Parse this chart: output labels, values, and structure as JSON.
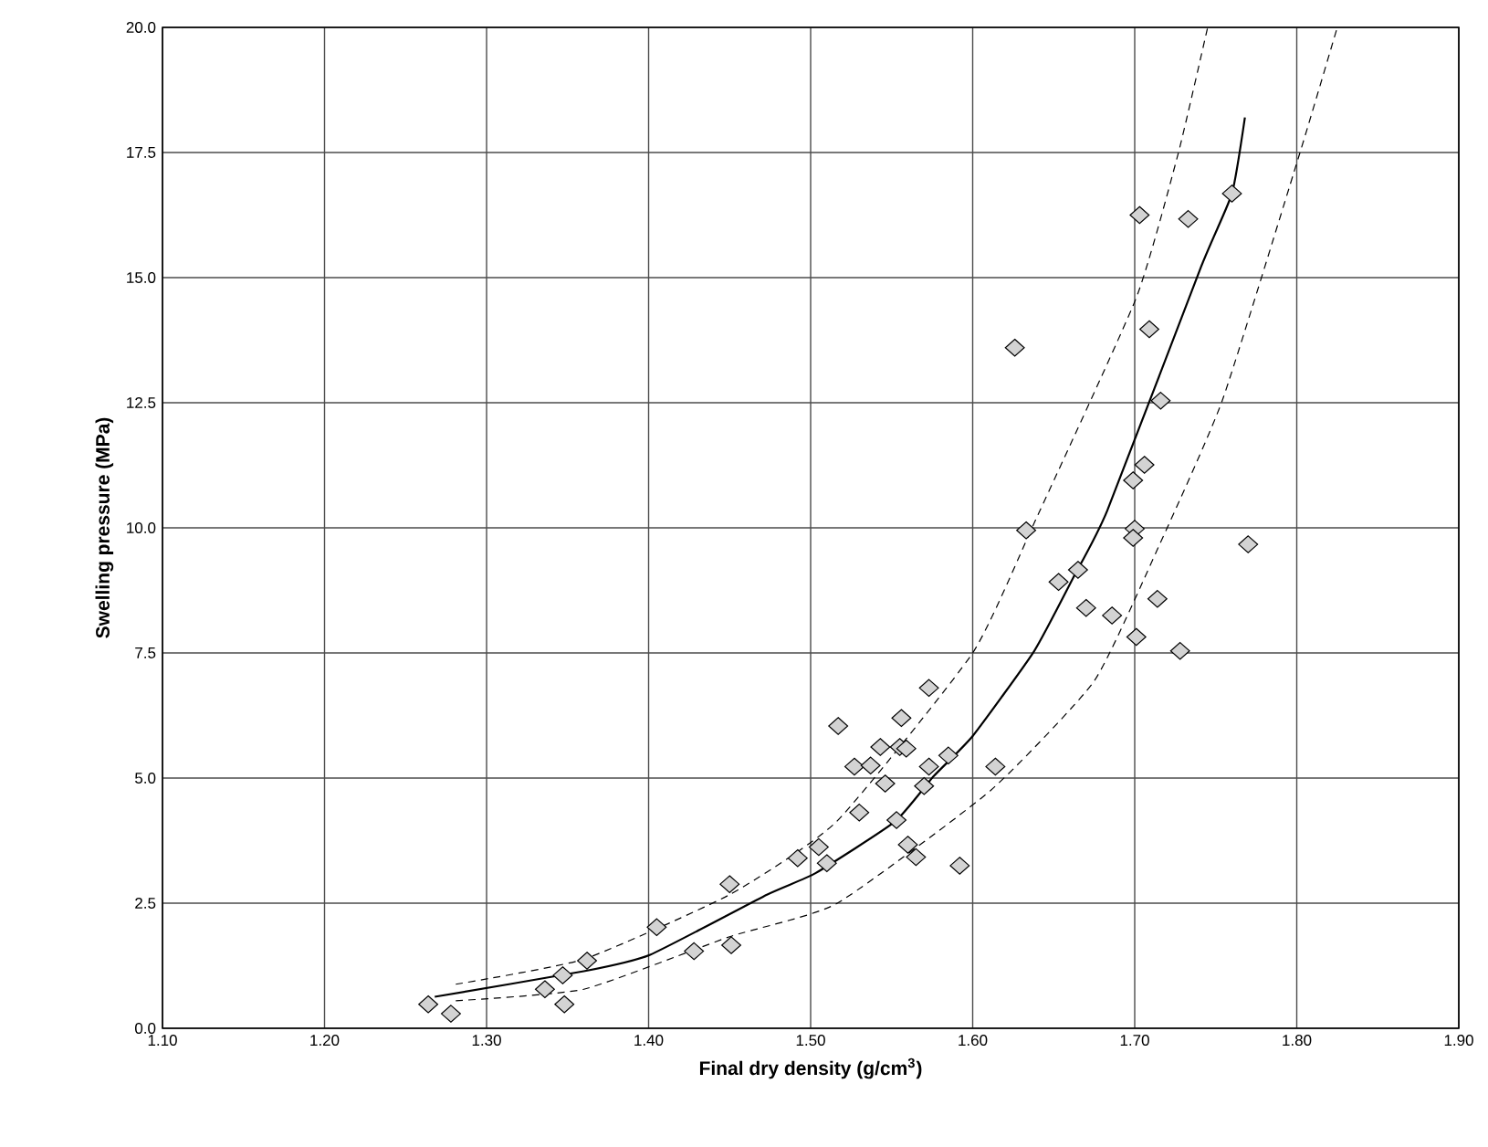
{
  "chart_data": {
    "type": "scatter",
    "xlabel": "Final dry density (g/cm$^{3}$)",
    "ylabel": "Swelling pressure (MPa)",
    "xlim": [
      1.1,
      1.9
    ],
    "ylim": [
      0,
      20
    ],
    "xticks": [
      {
        "value": 1.1,
        "label": "1.10"
      },
      {
        "value": 1.2,
        "label": "1.20"
      },
      {
        "value": 1.3,
        "label": "1.30"
      },
      {
        "value": 1.4,
        "label": "1.40"
      },
      {
        "value": 1.5,
        "label": "1.50"
      },
      {
        "value": 1.6,
        "label": "1.60"
      },
      {
        "value": 1.7,
        "label": "1.70"
      },
      {
        "value": 1.8,
        "label": "1.80"
      },
      {
        "value": 1.9,
        "label": "1.90"
      }
    ],
    "yticks": [
      {
        "value": 0,
        "label": "0.0"
      },
      {
        "value": 2.5,
        "label": "2.5"
      },
      {
        "value": 5,
        "label": "5.0"
      },
      {
        "value": 7.5,
        "label": "7.5"
      },
      {
        "value": 10,
        "label": "10.0"
      },
      {
        "value": 12.5,
        "label": "12.5"
      },
      {
        "value": 15,
        "label": "15.0"
      },
      {
        "value": 17.5,
        "label": "17.5"
      },
      {
        "value": 20,
        "label": "20.0"
      }
    ],
    "grid": true,
    "series": [
      {
        "marker": "diamond",
        "color": "#d3d3d3",
        "x": [
          1.264,
          1.278,
          1.336,
          1.347,
          1.348,
          1.362,
          1.405,
          1.428,
          1.45,
          1.451,
          1.492,
          1.505,
          1.51,
          1.633,
          1.7,
          1.699,
          1.653,
          1.665,
          1.67,
          1.686,
          1.701,
          1.714,
          1.573,
          1.517,
          1.556,
          1.543,
          1.555,
          1.559,
          1.527,
          1.537,
          1.546,
          1.573,
          1.585,
          1.57,
          1.614,
          1.53,
          1.553,
          1.56,
          1.565,
          1.592,
          1.76,
          1.703,
          1.733,
          1.709,
          1.716,
          1.706,
          1.699,
          1.77,
          1.728,
          1.626
        ],
        "values": [
          0.48,
          0.29,
          0.78,
          1.06,
          0.48,
          1.35,
          2.02,
          1.54,
          2.88,
          1.66,
          3.4,
          3.62,
          3.3,
          9.95,
          9.98,
          9.8,
          8.92,
          9.16,
          8.4,
          8.25,
          7.82,
          8.58,
          6.8,
          6.04,
          6.2,
          5.62,
          5.62,
          5.59,
          5.23,
          5.25,
          4.89,
          5.23,
          5.45,
          4.84,
          5.23,
          4.31,
          4.16,
          3.67,
          3.42,
          3.25,
          16.68,
          16.25,
          16.17,
          13.97,
          12.54,
          11.26,
          10.95,
          9.67,
          7.54,
          13.6
        ]
      },
      {
        "type": "line",
        "line_style": "solid",
        "color": "#000000",
        "x": [
          1.268,
          1.36,
          1.401,
          1.473,
          1.503,
          1.552,
          1.576,
          1.6,
          1.638,
          1.662,
          1.683,
          1.741,
          1.76,
          1.768
        ],
        "values": [
          0.63,
          1.14,
          1.47,
          2.67,
          3.1,
          4.13,
          5.04,
          5.84,
          7.54,
          9.0,
          10.34,
          15.22,
          16.68,
          18.2
        ]
      },
      {
        "type": "line",
        "line_style": "dashed",
        "color": "#000000",
        "x": [
          1.281,
          1.36,
          1.45,
          1.516,
          1.6,
          1.638,
          1.701,
          1.727,
          1.745
        ],
        "values": [
          0.88,
          1.38,
          2.67,
          4.13,
          7.5,
          10.1,
          14.6,
          17.5,
          20.0
        ]
      },
      {
        "type": "line",
        "line_style": "dashed",
        "color": "#000000",
        "x": [
          1.281,
          1.36,
          1.45,
          1.516,
          1.611,
          1.675,
          1.713,
          1.754,
          1.802,
          1.825
        ],
        "values": [
          0.55,
          0.78,
          1.83,
          2.49,
          4.75,
          6.94,
          9.5,
          12.54,
          17.5,
          20.0
        ]
      }
    ]
  }
}
